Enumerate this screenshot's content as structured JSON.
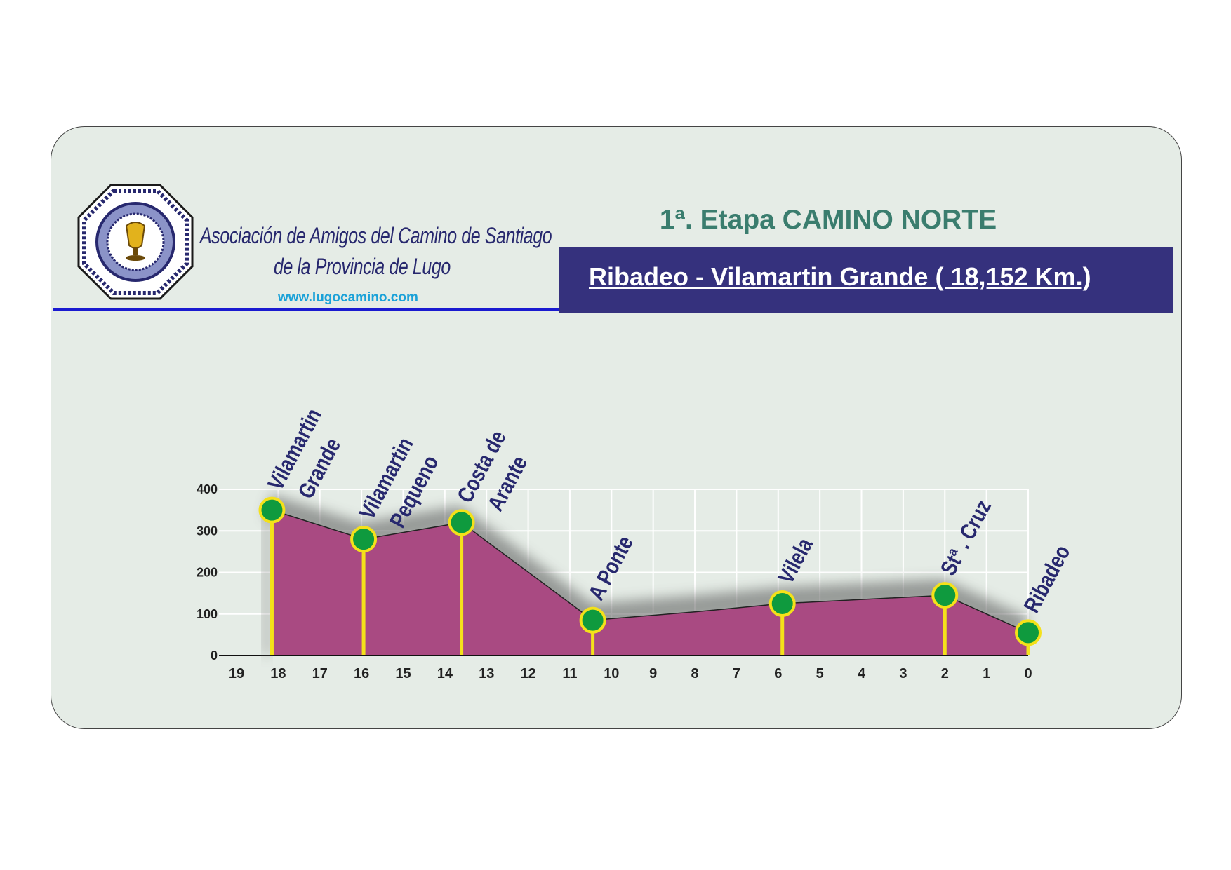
{
  "header": {
    "org_line1": "Asociación de Amigos del Camino de Santiago",
    "org_line2": "de la Provincia de Lugo",
    "website": "www.lugocamino.com",
    "stage_title": "1ª. Etapa CAMINO NORTE",
    "route_title": "Ribadeo - Vilamartin Grande ( 18,152 Km.)"
  },
  "colors": {
    "card_bg": "#e5ece6",
    "title_green": "#3a7d6e",
    "route_bg": "#35317d",
    "profile_fill": "#a94a82",
    "marker_green": "#0f9a3e",
    "marker_ring": "#f4e11a",
    "label_blue": "#27286e"
  },
  "chart_data": {
    "type": "area",
    "title": "",
    "xlabel": "",
    "ylabel": "",
    "xlim": [
      19,
      0
    ],
    "ylim": [
      0,
      400
    ],
    "x_ticks": [
      19,
      18,
      17,
      16,
      15,
      14,
      13,
      12,
      11,
      10,
      9,
      8,
      7,
      6,
      5,
      4,
      3,
      2,
      1,
      0
    ],
    "y_ticks": [
      0,
      100,
      200,
      300,
      400
    ],
    "grid": true,
    "profile": [
      {
        "x": 18.15,
        "y": 350
      },
      {
        "x": 15.95,
        "y": 280
      },
      {
        "x": 13.6,
        "y": 320
      },
      {
        "x": 10.45,
        "y": 85
      },
      {
        "x": 8.0,
        "y": 105
      },
      {
        "x": 5.9,
        "y": 125
      },
      {
        "x": 2.0,
        "y": 145
      },
      {
        "x": 0.0,
        "y": 55
      }
    ],
    "points": [
      {
        "name": "Vilamartin Grande",
        "label_lines": [
          "Vilamartin",
          "Grande"
        ],
        "x": 18.15,
        "y": 350
      },
      {
        "name": "Vilamartin Pequeno",
        "label_lines": [
          "Vilamartin",
          "Pequeno"
        ],
        "x": 15.95,
        "y": 280
      },
      {
        "name": "Costa de Arante",
        "label_lines": [
          "Costa de",
          "Arante"
        ],
        "x": 13.6,
        "y": 320
      },
      {
        "name": "A Ponte",
        "label_lines": [
          "A Ponte"
        ],
        "x": 10.45,
        "y": 85
      },
      {
        "name": "Vilela",
        "label_lines": [
          "Vilela"
        ],
        "x": 5.9,
        "y": 125
      },
      {
        "name": "Stª. Cruz",
        "label_lines": [
          "Stª . Cruz"
        ],
        "x": 2.0,
        "y": 145
      },
      {
        "name": "Ribadeo",
        "label_lines": [
          "Ribadeo"
        ],
        "x": 0.0,
        "y": 55
      }
    ]
  }
}
